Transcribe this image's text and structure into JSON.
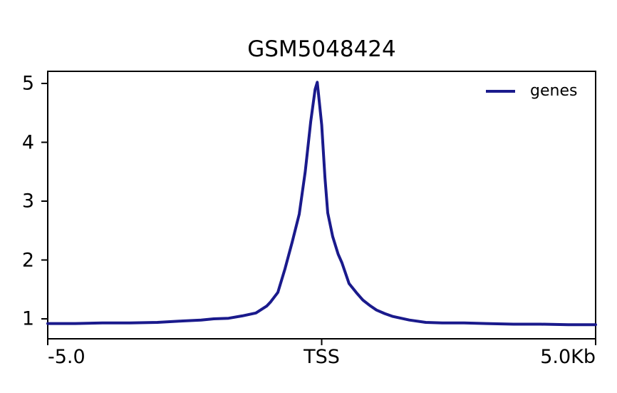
{
  "page": {
    "background": "#ffffff",
    "axis_color": "#000000",
    "text_color": "#000000"
  },
  "chart_data": {
    "type": "line",
    "title": "GSM5048424",
    "xlabel": "",
    "ylabel": "",
    "grid": false,
    "x_axis": {
      "xlim": [
        -5.0,
        5.0
      ],
      "unit": "Kb",
      "ticks": [
        {
          "pos": -5.0,
          "label": "-5.0",
          "align": "left"
        },
        {
          "pos": 0.0,
          "label": "TSS",
          "align": "center"
        },
        {
          "pos": 5.0,
          "label": "5.0Kb",
          "align": "right"
        }
      ]
    },
    "y_axis": {
      "ylim": [
        0.661,
        5.206
      ],
      "ticks": [
        1,
        2,
        3,
        4,
        5
      ]
    },
    "legend": {
      "position": "upper-right",
      "frame": false,
      "entries": [
        {
          "label": "genes",
          "color": "#1a1a8c"
        }
      ]
    },
    "series": [
      {
        "name": "genes",
        "color": "#1a1a8c",
        "line_width": 4,
        "x": [
          -5.0,
          -4.5,
          -4.0,
          -3.5,
          -3.0,
          -2.6,
          -2.2,
          -1.97,
          -1.7,
          -1.45,
          -1.2,
          -1.0,
          -0.93,
          -0.8,
          -0.67,
          -0.54,
          -0.41,
          -0.3,
          -0.2,
          -0.12,
          -0.08,
          0.0,
          0.06,
          0.11,
          0.2,
          0.3,
          0.37,
          0.5,
          0.63,
          0.75,
          0.89,
          1.0,
          1.15,
          1.3,
          1.6,
          1.9,
          2.2,
          2.6,
          3.0,
          3.5,
          4.0,
          4.5,
          5.0
        ],
        "y": [
          0.92,
          0.92,
          0.93,
          0.93,
          0.94,
          0.96,
          0.98,
          1.0,
          1.01,
          1.05,
          1.1,
          1.22,
          1.29,
          1.45,
          1.85,
          2.3,
          2.78,
          3.5,
          4.35,
          4.9,
          5.02,
          4.3,
          3.4,
          2.8,
          2.4,
          2.1,
          1.95,
          1.6,
          1.45,
          1.32,
          1.22,
          1.15,
          1.09,
          1.04,
          0.98,
          0.94,
          0.93,
          0.93,
          0.92,
          0.91,
          0.91,
          0.9,
          0.9
        ]
      }
    ]
  }
}
